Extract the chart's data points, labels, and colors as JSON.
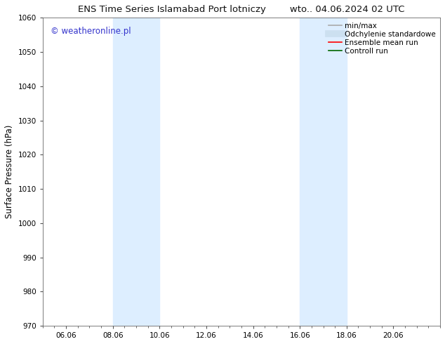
{
  "title": "ENS Time Series Islamabad Port lotniczy        wto.. 04.06.2024 02 UTC",
  "ylabel": "Surface Pressure (hPa)",
  "ylim": [
    970,
    1060
  ],
  "yticks": [
    970,
    980,
    990,
    1000,
    1010,
    1020,
    1030,
    1040,
    1050,
    1060
  ],
  "xlim": [
    0,
    17
  ],
  "xtick_labels": [
    "06.06",
    "08.06",
    "10.06",
    "12.06",
    "14.06",
    "16.06",
    "18.06",
    "20.06"
  ],
  "xtick_positions": [
    1,
    3,
    5,
    7,
    9,
    11,
    13,
    15
  ],
  "background_color": "#ffffff",
  "plot_bg_color": "#ffffff",
  "shaded_regions": [
    {
      "xstart": 3,
      "xend": 5,
      "color": "#ddeeff"
    },
    {
      "xstart": 11,
      "xend": 13,
      "color": "#ddeeff"
    }
  ],
  "watermark_text": "© weatheronline.pl",
  "watermark_color": "#3333cc",
  "legend_items": [
    {
      "label": "min/max",
      "color": "#aaaaaa",
      "lw": 1.2,
      "style": "solid"
    },
    {
      "label": "Odchylenie standardowe",
      "color": "#cce0f0",
      "lw": 7,
      "style": "solid"
    },
    {
      "label": "Ensemble mean run",
      "color": "#ff0000",
      "lw": 1.2,
      "style": "solid"
    },
    {
      "label": "Controll run",
      "color": "#006600",
      "lw": 1.2,
      "style": "solid"
    }
  ],
  "title_fontsize": 9.5,
  "tick_fontsize": 7.5,
  "ylabel_fontsize": 8.5,
  "watermark_fontsize": 8.5,
  "legend_fontsize": 7.5
}
